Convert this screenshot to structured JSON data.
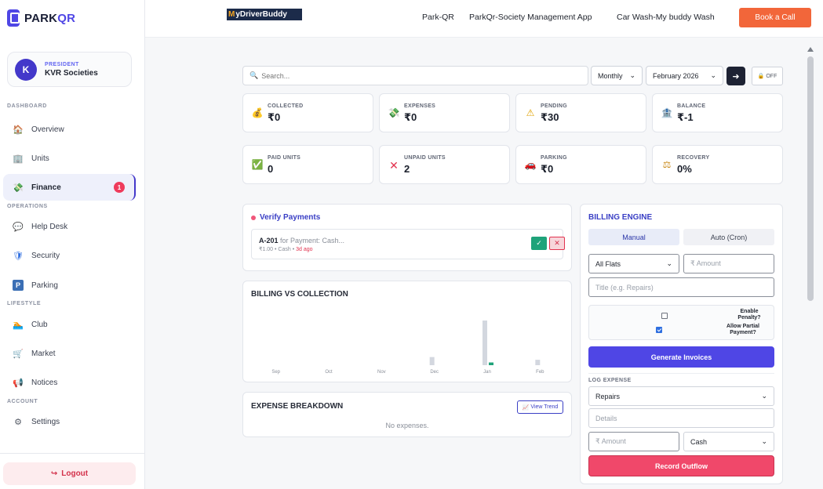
{
  "sidebar": {
    "brand": {
      "prefix": "PARK",
      "suffix": "QR"
    },
    "profile": {
      "initial": "K",
      "role": "PRESIDENT",
      "org": "KVR Societies"
    },
    "sections": {
      "dashboard": "DASHBOARD",
      "operations": "OPERATIONS",
      "lifestyle": "LIFESTYLE",
      "account": "ACCOUNT"
    },
    "items": [
      {
        "label": "Overview",
        "icon": "house-icon",
        "glyph": "🏠"
      },
      {
        "label": "Units",
        "icon": "building-icon",
        "glyph": "🏢"
      },
      {
        "label": "Finance",
        "icon": "money-icon",
        "glyph": "💸",
        "badge": "1"
      },
      {
        "label": "Help Desk",
        "icon": "chat-icon",
        "glyph": "💬"
      },
      {
        "label": "Security",
        "icon": "shield-icon",
        "glyph": "🛡"
      },
      {
        "label": "Parking",
        "icon": "parking-icon",
        "glyph": "P"
      },
      {
        "label": "Club",
        "icon": "pool-icon",
        "glyph": "🏊"
      },
      {
        "label": "Market",
        "icon": "cart-icon",
        "glyph": "🛒"
      },
      {
        "label": "Notices",
        "icon": "megaphone-icon",
        "glyph": "📢"
      },
      {
        "label": "Settings",
        "icon": "gear-icon",
        "glyph": "⚙"
      }
    ],
    "logout": "Logout"
  },
  "topbar": {
    "logo": {
      "initial": "M",
      "rest": "yDriverBuddy"
    },
    "links": [
      "Park-QR",
      "ParkQr-Society Management App",
      "Car Wash-My buddy Wash"
    ],
    "cta": "Book a Call"
  },
  "filters": {
    "search_placeholder": "Search...",
    "period": "Monthly",
    "month": "February 2026",
    "toggle": "OFF"
  },
  "stats": [
    {
      "label": "COLLECTED",
      "value": "₹0",
      "glyph": "💰"
    },
    {
      "label": "EXPENSES",
      "value": "₹0",
      "glyph": "💸"
    },
    {
      "label": "PENDING",
      "value": "₹30",
      "glyph": "⚠"
    },
    {
      "label": "BALANCE",
      "value": "₹-1",
      "glyph": "🏦"
    },
    {
      "label": "PAID UNITS",
      "value": "0",
      "glyph": "✅"
    },
    {
      "label": "UNPAID UNITS",
      "value": "2",
      "glyph": "✕"
    },
    {
      "label": "PARKING",
      "value": "₹0",
      "glyph": "🚗"
    },
    {
      "label": "RECOVERY",
      "value": "0%",
      "glyph": "⚖"
    }
  ],
  "verify": {
    "title": "Verify Payments",
    "item": {
      "unit": "A-201",
      "desc": " for Payment: Cash...",
      "meta": "₹1.00 • Cash • ",
      "age": "3d ago"
    }
  },
  "billing_chart": {
    "title": "BILLING VS COLLECTION",
    "colors": {
      "billing": "#d3d7df",
      "collection": "#1fa37a"
    }
  },
  "chart_data": {
    "type": "bar",
    "categories": [
      "Sep",
      "Oct",
      "Nov",
      "Dec",
      "Jan",
      "Feb"
    ],
    "series": [
      {
        "values": [
          0,
          0,
          0,
          6,
          33,
          4
        ]
      },
      {
        "values": [
          0,
          0,
          0,
          0,
          2,
          0
        ]
      }
    ]
  },
  "expense": {
    "title": "EXPENSE BREAKDOWN",
    "trend_button": "View Trend",
    "empty": "No expenses."
  },
  "billing_engine": {
    "title": "BILLING ENGINE",
    "tabs": [
      "Manual",
      "Auto (Cron)"
    ],
    "flats": "All Flats",
    "amount_placeholder": "₹ Amount",
    "title_placeholder": "Title (e.g. Repairs)",
    "penalty_label": "Enable Penalty?",
    "partial_label": "Allow Partial Payment?",
    "generate": "Generate Invoices",
    "log_label": "LOG EXPENSE",
    "category": "Repairs",
    "details_placeholder": "Details",
    "exp_amount_placeholder": "₹ Amount",
    "mode": "Cash",
    "record": "Record Outflow"
  }
}
